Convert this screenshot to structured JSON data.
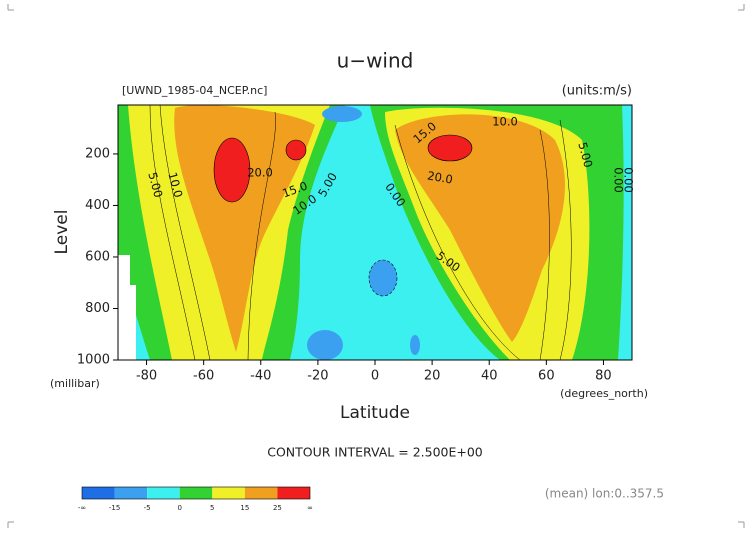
{
  "chart_data": {
    "type": "contour",
    "title": "u−wind",
    "subtitle_left": "[UWND_1985-04_NCEP.nc]",
    "subtitle_right": "(units:m/s)",
    "ylabel": "Level",
    "yunit": "(millibar)",
    "xlabel": "Latitude",
    "xunit": "(degrees_north)",
    "xlim": [
      -90,
      90
    ],
    "xticks": [
      -80,
      -60,
      -40,
      -20,
      0,
      20,
      40,
      60,
      80
    ],
    "ylim": [
      1000,
      10
    ],
    "yticks": [
      200,
      400,
      600,
      800,
      1000
    ],
    "contour_labels": [
      "10.0",
      "15.0",
      "20.0",
      "20.0",
      "15.0",
      "10.0",
      "10.0",
      "5.00",
      "5.00",
      "0.00",
      "0.00",
      "5.00",
      "0.00",
      "5.00"
    ],
    "footer": "CONTOUR INTERVAL = 2.500E+00",
    "mean_note": "(mean) lon:0..357.5",
    "colorbar_labels": [
      "-∞",
      "-15",
      "-5",
      "0",
      "5",
      "15",
      "25",
      "∞"
    ],
    "colorbar_colors": [
      "#1e6ee6",
      "#3ca0f0",
      "#3cf0f0",
      "#32d232",
      "#f0f028",
      "#f0a01e",
      "#f01e1e"
    ]
  }
}
